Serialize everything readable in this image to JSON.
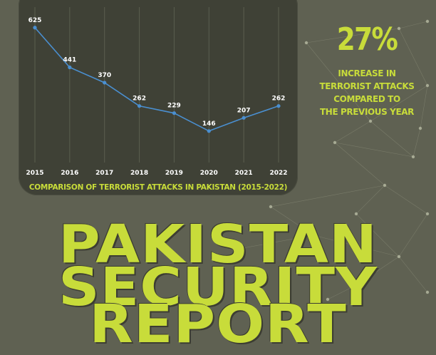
{
  "stat": {
    "value": "27%",
    "lines": [
      "INCREASE IN",
      "TERRORIST ATTACKS",
      "COMPARED TO",
      "THE PREVIOUS YEAR"
    ]
  },
  "headline": {
    "line1": "PAKISTAN",
    "line2": "SECURITY",
    "line3": "REPORT"
  },
  "colors": {
    "accent": "#c8dc3a",
    "line": "#4a8fd0",
    "panel": "#3f4136",
    "background": "#5f6152"
  },
  "chart_data": {
    "type": "line",
    "title": "COMPARISON OF TERRORIST ATTACKS IN PAKISTAN (2015-2022)",
    "xlabel": "",
    "ylabel": "",
    "categories": [
      "2015",
      "2016",
      "2017",
      "2018",
      "2019",
      "2020",
      "2021",
      "2022"
    ],
    "series": [
      {
        "values": [
          625,
          441,
          370,
          262,
          229,
          146,
          207,
          262
        ]
      }
    ],
    "ylim": [
      0,
      720
    ],
    "grid": "vertical",
    "legend": "none"
  }
}
